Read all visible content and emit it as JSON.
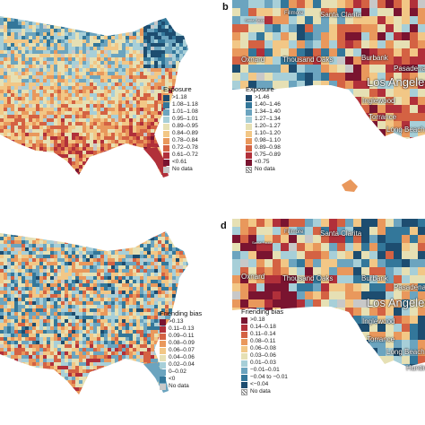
{
  "panels": {
    "b_letter": "b",
    "d_letter": "d"
  },
  "exposure_legend_us": {
    "title": "Exposure",
    "items": [
      {
        "label": ">1.18",
        "color": "#1d4d70"
      },
      {
        "label": "1.08–1.18",
        "color": "#33779a"
      },
      {
        "label": "1.01–1.08",
        "color": "#6ba4bf"
      },
      {
        "label": "0.95–1.01",
        "color": "#a7cfd8"
      },
      {
        "label": "0.89–0.95",
        "color": "#e6e0b4"
      },
      {
        "label": "0.84–0.89",
        "color": "#f2c786"
      },
      {
        "label": "0.78–0.84",
        "color": "#e9985c"
      },
      {
        "label": "0.72–0.78",
        "color": "#d46243"
      },
      {
        "label": "0.61–0.72",
        "color": "#b1303a"
      },
      {
        "label": "<0.61",
        "color": "#7a1430"
      },
      {
        "label": "No data",
        "color": "#c8c8c8"
      }
    ]
  },
  "exposure_legend_la": {
    "title": "Exposure",
    "items": [
      {
        "label": ">1.46",
        "color": "#1d4d70"
      },
      {
        "label": "1.40–1.46",
        "color": "#33779a"
      },
      {
        "label": "1.34–1.40",
        "color": "#6ba4bf"
      },
      {
        "label": "1.27–1.34",
        "color": "#a7cfd8"
      },
      {
        "label": "1.20–1.27",
        "color": "#e6e0b4"
      },
      {
        "label": "1.10–1.20",
        "color": "#f2c786"
      },
      {
        "label": "0.98–1.10",
        "color": "#e9985c"
      },
      {
        "label": "0.89–0.98",
        "color": "#d46243"
      },
      {
        "label": "0.75–0.89",
        "color": "#b1303a"
      },
      {
        "label": "<0.75",
        "color": "#7a1430"
      },
      {
        "label": "No data",
        "color": "hatch"
      }
    ]
  },
  "friending_legend_us": {
    "title": "Friending bias",
    "items": [
      {
        "label": ">0.13",
        "color": "#7a1430"
      },
      {
        "label": "0.11–0.13",
        "color": "#b1303a"
      },
      {
        "label": "0.09–0.11",
        "color": "#d46243"
      },
      {
        "label": "0.08–0.09",
        "color": "#e9985c"
      },
      {
        "label": "0.06–0.07",
        "color": "#f2c786"
      },
      {
        "label": "0.04–0.06",
        "color": "#e6e0b4"
      },
      {
        "label": "0.02–0.04",
        "color": "#a7cfd8"
      },
      {
        "label": "0–0.02",
        "color": "#6ba4bf"
      },
      {
        "label": "<0",
        "color": "#33779a"
      },
      {
        "label": "No data",
        "color": "#c8c8c8"
      }
    ]
  },
  "friending_legend_la": {
    "title": "Friending bias",
    "items": [
      {
        "label": ">0.18",
        "color": "#7a1430"
      },
      {
        "label": "0.14–0.18",
        "color": "#b1303a"
      },
      {
        "label": "0.11–0.14",
        "color": "#d46243"
      },
      {
        "label": "0.08–0.11",
        "color": "#e9985c"
      },
      {
        "label": "0.06–0.08",
        "color": "#f2c786"
      },
      {
        "label": "0.03–0.06",
        "color": "#e6e0b4"
      },
      {
        "label": "0.01–0.03",
        "color": "#a7cfd8"
      },
      {
        "label": "−0.01–0.01",
        "color": "#6ba4bf"
      },
      {
        "label": "−0.04 to −0.01",
        "color": "#33779a"
      },
      {
        "label": "<−0.04",
        "color": "#1d4d70"
      },
      {
        "label": "No data",
        "color": "hatch"
      }
    ]
  },
  "cities_b": {
    "fillmore": "Fillmore",
    "santa_clarita": "Santa Clarita",
    "santa_paula": "Santa Paula",
    "oxnard": "Oxnard",
    "thousand_oaks": "Thousand Oaks",
    "burbank": "Burbank",
    "pasadena": "Pasadena",
    "los_angeles": "Los Angeles",
    "inglewood": "Inglewood",
    "torrance": "Torrance",
    "long_beach": "Long Beach"
  },
  "cities_d": {
    "fillmore": "Fillmore",
    "santa_clarita": "Santa Clarita",
    "santa_paula": "Santa Paula",
    "oxnard": "Oxnard",
    "thousand_oaks": "Thousand Oaks",
    "burbank": "Burbank",
    "pasadena": "Pasadena",
    "los_angeles": "Los Angeles",
    "inglewood": "Inglewood",
    "torrance": "Torrance",
    "long_beach": "Long Beach",
    "huntington": "Huntin"
  },
  "palette": [
    "#1d4d70",
    "#33779a",
    "#6ba4bf",
    "#a7cfd8",
    "#e6e0b4",
    "#f2c786",
    "#e9985c",
    "#d46243",
    "#b1303a",
    "#7a1430"
  ]
}
